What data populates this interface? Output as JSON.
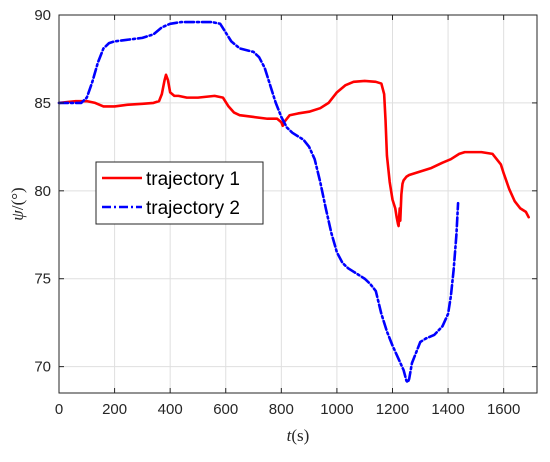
{
  "chart_data": {
    "type": "line",
    "title": "",
    "xlabel_italic": "t",
    "xlabel_unit": "(s)",
    "ylabel_italic": "ψ",
    "ylabel_unit": "/(°)",
    "xlim": [
      0,
      1720
    ],
    "ylim": [
      68.5,
      90
    ],
    "xticks": [
      0,
      200,
      400,
      600,
      800,
      1000,
      1200,
      1400,
      1600
    ],
    "yticks": [
      70,
      75,
      80,
      85,
      90
    ],
    "grid": true,
    "legend_position": "middle-left",
    "series": [
      {
        "name": "trajectory 1",
        "color": "#ff0000",
        "dash": "solid",
        "x": [
          0,
          60,
          100,
          130,
          160,
          200,
          250,
          300,
          340,
          360,
          370,
          380,
          385,
          392,
          400,
          415,
          430,
          460,
          500,
          560,
          590,
          610,
          630,
          650,
          700,
          750,
          785,
          800,
          805,
          810,
          830,
          860,
          900,
          940,
          970,
          1000,
          1030,
          1060,
          1100,
          1140,
          1160,
          1170,
          1175,
          1180,
          1190,
          1200,
          1210,
          1215,
          1220,
          1222,
          1226,
          1228,
          1232,
          1236,
          1240,
          1245,
          1250,
          1260,
          1280,
          1300,
          1340,
          1380,
          1410,
          1440,
          1460,
          1480,
          1520,
          1560,
          1590,
          1600,
          1620,
          1640,
          1660,
          1680,
          1690
        ],
        "y": [
          85.0,
          85.1,
          85.1,
          85.0,
          84.8,
          84.8,
          84.9,
          84.95,
          85.0,
          85.1,
          85.5,
          86.3,
          86.6,
          86.3,
          85.6,
          85.4,
          85.4,
          85.3,
          85.3,
          85.4,
          85.3,
          84.8,
          84.45,
          84.3,
          84.2,
          84.1,
          84.1,
          83.9,
          83.7,
          83.9,
          84.3,
          84.4,
          84.5,
          84.7,
          85.0,
          85.6,
          86.0,
          86.2,
          86.25,
          86.2,
          86.1,
          85.5,
          84.0,
          82.0,
          80.5,
          79.5,
          79.0,
          78.5,
          78.1,
          78.0,
          79.0,
          78.3,
          79.8,
          80.4,
          80.6,
          80.7,
          80.8,
          80.9,
          81.0,
          81.1,
          81.3,
          81.6,
          81.8,
          82.1,
          82.2,
          82.2,
          82.2,
          82.1,
          81.5,
          81.0,
          80.1,
          79.4,
          79.0,
          78.8,
          78.5
        ]
      },
      {
        "name": "trajectory 2",
        "color": "#0000ff",
        "dash": "dashdot",
        "x": [
          0,
          80,
          100,
          120,
          140,
          160,
          180,
          200,
          250,
          300,
          340,
          370,
          400,
          440,
          500,
          550,
          580,
          600,
          620,
          650,
          700,
          720,
          740,
          760,
          780,
          800,
          820,
          840,
          860,
          880,
          900,
          920,
          940,
          960,
          980,
          1000,
          1020,
          1040,
          1060,
          1080,
          1100,
          1120,
          1140,
          1160,
          1180,
          1200,
          1220,
          1240,
          1250,
          1255,
          1260,
          1270,
          1280,
          1290,
          1300,
          1320,
          1350,
          1380,
          1400,
          1410,
          1420,
          1430,
          1436
        ],
        "y": [
          85.0,
          85.0,
          85.3,
          86.2,
          87.3,
          88.1,
          88.4,
          88.5,
          88.6,
          88.7,
          88.9,
          89.3,
          89.5,
          89.6,
          89.6,
          89.6,
          89.5,
          89.0,
          88.5,
          88.1,
          87.9,
          87.6,
          87.0,
          86.0,
          85.0,
          84.2,
          83.6,
          83.3,
          83.1,
          82.9,
          82.5,
          81.8,
          80.5,
          79.0,
          77.6,
          76.5,
          75.9,
          75.6,
          75.4,
          75.2,
          75.0,
          74.7,
          74.3,
          73.0,
          72.0,
          71.2,
          70.5,
          69.8,
          69.2,
          69.1,
          69.3,
          70.2,
          70.6,
          71.0,
          71.4,
          71.6,
          71.8,
          72.3,
          73.0,
          74.0,
          75.5,
          77.5,
          79.3
        ]
      }
    ]
  }
}
